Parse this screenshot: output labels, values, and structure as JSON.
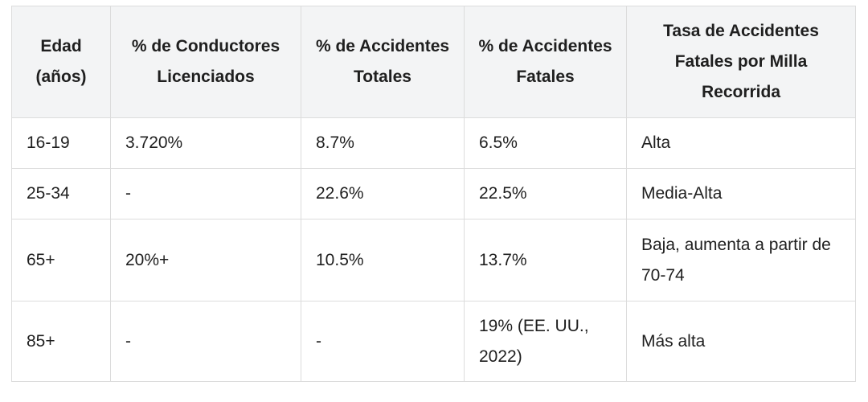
{
  "table": {
    "headers": [
      "Edad (años)",
      "% de Conductores Licenciados",
      "% de Accidentes Totales",
      "% de Accidentes Fatales",
      "Tasa de Accidentes Fatales por Milla Recorrida"
    ],
    "rows": [
      [
        "16-19",
        "3.720%",
        "8.7%",
        "6.5%",
        "Alta"
      ],
      [
        "25-34",
        "-",
        "22.6%",
        "22.5%",
        "Media-Alta"
      ],
      [
        "65+",
        "20%+",
        "10.5%",
        "13.7%",
        "Baja, aumenta a partir de 70-74"
      ],
      [
        "85+",
        "-",
        "-",
        "19% (EE. UU., 2022)",
        "Más alta"
      ]
    ]
  }
}
